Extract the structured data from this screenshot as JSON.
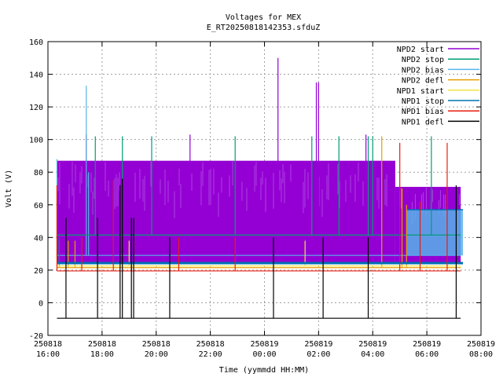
{
  "chart_data": {
    "type": "line",
    "title": "Voltages for MEX",
    "subtitle": "E_RT20250818142353.sfduZ",
    "xlabel": "Time (yymmdd HH:MM)",
    "ylabel": "Volt (V)",
    "xlim": [
      "250818 16:00",
      "250819 08:00"
    ],
    "ylim": [
      -20,
      160
    ],
    "grid": true,
    "legend_position": "top-right",
    "x_ticks": [
      {
        "date": "250818",
        "time": "16:00"
      },
      {
        "date": "250818",
        "time": "18:00"
      },
      {
        "date": "250818",
        "time": "20:00"
      },
      {
        "date": "250818",
        "time": "22:00"
      },
      {
        "date": "250819",
        "time": "00:00"
      },
      {
        "date": "250819",
        "time": "02:00"
      },
      {
        "date": "250819",
        "time": "04:00"
      },
      {
        "date": "250819",
        "time": "06:00"
      },
      {
        "date": "250819",
        "time": "08:00"
      }
    ],
    "y_ticks": [
      "-20",
      "0",
      "20",
      "40",
      "60",
      "80",
      "100",
      "120",
      "140",
      "160"
    ],
    "series": [
      {
        "name": "NPD2 start",
        "color": "#9400d3",
        "base": 25,
        "range": [
          "250818 16:20",
          "250819 07:15"
        ],
        "bands": [
          {
            "from": "250818 16:20",
            "to": "250819 04:50",
            "level": 87
          },
          {
            "from": "250819 04:50",
            "to": "250819 07:15",
            "level": 71
          }
        ],
        "spikes": [
          {
            "t": "250818 17:25",
            "v": 103
          },
          {
            "t": "250818 21:15",
            "v": 103
          },
          {
            "t": "250819 00:30",
            "v": 150
          },
          {
            "t": "250819 01:55",
            "v": 135
          },
          {
            "t": "250819 02:00",
            "v": 135
          },
          {
            "t": "250819 03:45",
            "v": 103
          }
        ]
      },
      {
        "name": "NPD2 stop",
        "color": "#009e73",
        "level": 41.5,
        "range": [
          "250818 16:20",
          "250819 07:15"
        ],
        "spikes": [
          {
            "t": "250818 17:45",
            "v": 102
          },
          {
            "t": "250818 18:45",
            "v": 102
          },
          {
            "t": "250818 19:50",
            "v": 102
          },
          {
            "t": "250818 22:55",
            "v": 102
          },
          {
            "t": "250819 01:45",
            "v": 102
          },
          {
            "t": "250819 02:45",
            "v": 102
          },
          {
            "t": "250819 03:50",
            "v": 102
          },
          {
            "t": "250819 04:00",
            "v": 102
          },
          {
            "t": "250819 06:10",
            "v": 102
          }
        ]
      },
      {
        "name": "NPD2 bias",
        "color": "#56b4e9",
        "level": 29,
        "range": [
          "250818 16:20",
          "250819 07:15"
        ],
        "block": {
          "from": "250819 05:15",
          "to": "250819 07:20",
          "level": 57
        },
        "spikes": [
          {
            "t": "250818 16:20",
            "v": 88
          },
          {
            "t": "250818 17:25",
            "v": 133
          },
          {
            "t": "250818 17:30",
            "v": 80
          }
        ]
      },
      {
        "name": "NPD2 defl",
        "color": "#e69f00",
        "level": 21.5,
        "range": [
          "250818 16:20",
          "250819 07:15"
        ],
        "spikes": [
          {
            "t": "250818 16:25",
            "v": 38
          },
          {
            "t": "250818 16:45",
            "v": 38
          },
          {
            "t": "250818 17:00",
            "v": 38
          },
          {
            "t": "250818 19:10",
            "v": 38
          },
          {
            "t": "250819 04:20",
            "v": 102
          },
          {
            "t": "250819 05:05",
            "v": 70
          },
          {
            "t": "250819 05:15",
            "v": 60
          }
        ]
      },
      {
        "name": "NPD1 start",
        "color": "#f0e442",
        "level": 22.5,
        "range": [
          "250818 16:20",
          "250819 07:15"
        ],
        "spikes": [
          {
            "t": "250818 19:00",
            "v": 38
          },
          {
            "t": "250819 01:30",
            "v": 38
          }
        ]
      },
      {
        "name": "NPD1 stop",
        "color": "#0072b2",
        "level": 24.3,
        "range": [
          "250818 16:20",
          "250819 07:20"
        ],
        "spikes": [
          {
            "t": "250818 16:25",
            "v": 40
          }
        ]
      },
      {
        "name": "NPD1 bias",
        "color": "#e51e10",
        "level": 19.5,
        "range": [
          "250818 16:20",
          "250819 07:15"
        ],
        "spikes": [
          {
            "t": "250818 16:20",
            "v": 72
          },
          {
            "t": "250818 17:15",
            "v": 40
          },
          {
            "t": "250818 18:25",
            "v": 75
          },
          {
            "t": "250818 19:05",
            "v": 40
          },
          {
            "t": "250818 20:50",
            "v": 40
          },
          {
            "t": "250818 22:55",
            "v": 40
          },
          {
            "t": "250819 05:00",
            "v": 98
          },
          {
            "t": "250819 05:45",
            "v": 62
          },
          {
            "t": "250819 06:45",
            "v": 98
          }
        ]
      },
      {
        "name": "NPD1 defl",
        "color": "#000000",
        "level": -9.5,
        "range": [
          "250818 16:20",
          "250819 07:15"
        ],
        "spikes": [
          {
            "t": "250818 16:40",
            "v": 52
          },
          {
            "t": "250818 17:50",
            "v": 52
          },
          {
            "t": "250818 18:40",
            "v": 72
          },
          {
            "t": "250818 18:45",
            "v": 76
          },
          {
            "t": "250818 19:05",
            "v": 52
          },
          {
            "t": "250818 19:10",
            "v": 52
          },
          {
            "t": "250818 20:30",
            "v": 40
          },
          {
            "t": "250819 00:20",
            "v": 40
          },
          {
            "t": "250819 02:10",
            "v": 40
          },
          {
            "t": "250819 03:50",
            "v": 40
          },
          {
            "t": "250819 07:05",
            "v": 72
          }
        ]
      }
    ]
  }
}
